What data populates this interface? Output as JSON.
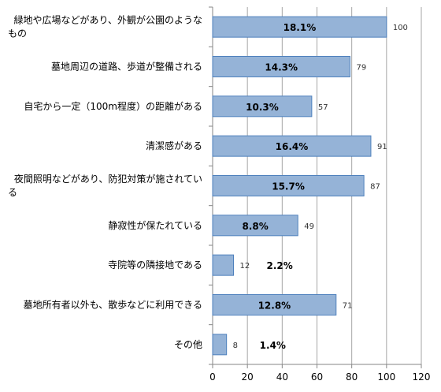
{
  "chart_data": {
    "type": "bar",
    "orientation": "horizontal",
    "categories": [
      [
        "緑地や広場などがあり、外観が公園のような",
        "もの"
      ],
      [
        "墓地周辺の道路、歩道が整備される"
      ],
      [
        "自宅から一定（100m程度）の距離がある"
      ],
      [
        "清潔感がある"
      ],
      [
        "夜間照明などがあり、防犯対策が施されてい",
        "る"
      ],
      [
        "静寂性が保たれている"
      ],
      [
        "寺院等の隣接地である"
      ],
      [
        "墓地所有者以外も、散歩などに利用できる"
      ],
      [
        "その他"
      ]
    ],
    "values": [
      100,
      79,
      57,
      91,
      87,
      49,
      12,
      71,
      8
    ],
    "percent_labels": [
      "18.1%",
      "14.3%",
      "10.3%",
      "16.4%",
      "15.7%",
      "8.8%",
      "2.2%",
      "12.8%",
      "1.4%"
    ],
    "xlim": [
      0,
      120
    ],
    "xticks": [
      0,
      20,
      40,
      60,
      80,
      100,
      120
    ],
    "grid": true,
    "bar_color": "#95B3D7",
    "bar_edge_color": "#4F81BD",
    "grid_color": "#A6A6A6"
  }
}
